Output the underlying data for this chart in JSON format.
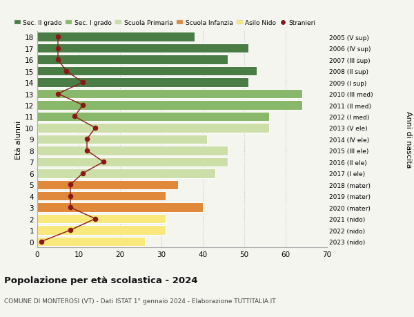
{
  "ages": [
    0,
    1,
    2,
    3,
    4,
    5,
    6,
    7,
    8,
    9,
    10,
    11,
    12,
    13,
    14,
    15,
    16,
    17,
    18
  ],
  "bar_values": [
    26,
    31,
    31,
    40,
    31,
    34,
    43,
    46,
    46,
    41,
    56,
    56,
    64,
    64,
    51,
    53,
    46,
    51,
    38
  ],
  "stranieri": [
    1,
    8,
    14,
    8,
    8,
    8,
    11,
    16,
    12,
    12,
    14,
    9,
    11,
    5,
    11,
    7,
    5,
    5,
    5
  ],
  "right_labels": [
    "2023 (nido)",
    "2022 (nido)",
    "2021 (nido)",
    "2020 (mater)",
    "2019 (mater)",
    "2018 (mater)",
    "2017 (I ele)",
    "2016 (II ele)",
    "2015 (III ele)",
    "2014 (IV ele)",
    "2013 (V ele)",
    "2012 (I med)",
    "2011 (II med)",
    "2010 (III med)",
    "2009 (I sup)",
    "2008 (II sup)",
    "2007 (III sup)",
    "2006 (IV sup)",
    "2005 (V sup)"
  ],
  "bar_colors": {
    "nido": "#f9e87b",
    "mater": "#e0893a",
    "ele": "#ccdfa8",
    "med": "#8ab86a",
    "sup": "#4a7c46"
  },
  "color_map": [
    "nido",
    "nido",
    "nido",
    "mater",
    "mater",
    "mater",
    "ele",
    "ele",
    "ele",
    "ele",
    "ele",
    "med",
    "med",
    "med",
    "sup",
    "sup",
    "sup",
    "sup",
    "sup"
  ],
  "stranieri_color": "#8b1818",
  "title": "Popolazione per età scolastica - 2024",
  "subtitle": "COMUNE DI MONTEROSI (VT) - Dati ISTAT 1° gennaio 2024 - Elaborazione TUTTITALIA.IT",
  "ylabel": "Età alunni",
  "right_ylabel": "Anni di nascita",
  "xlim": [
    0,
    70
  ],
  "xticks": [
    0,
    10,
    20,
    30,
    40,
    50,
    60,
    70
  ],
  "legend_labels": [
    "Sec. II grado",
    "Sec. I grado",
    "Scuola Primaria",
    "Scuola Infanzia",
    "Asilo Nido",
    "Stranieri"
  ],
  "legend_colors": [
    "#4a7c46",
    "#8ab86a",
    "#ccdfa8",
    "#e0893a",
    "#f9e87b",
    "#8b1818"
  ],
  "bg_color": "#f5f5f0"
}
